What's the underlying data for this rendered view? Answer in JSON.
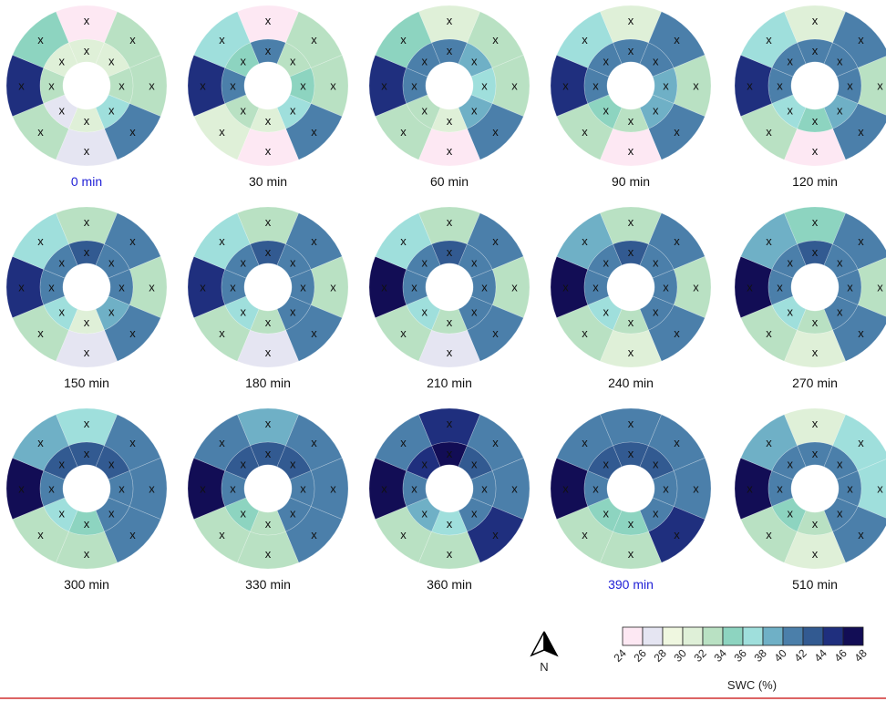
{
  "chart_data": {
    "type": "heatmap",
    "description_unit": "SWC (%)",
    "rings": [
      "outer",
      "middle"
    ],
    "sectors": 8,
    "sector_order": "clockwise from north: N, NE, E, SE, S, SW, W, NW",
    "marker": "x",
    "panels": [
      {
        "label": "0 min",
        "highlight": true,
        "outer": [
          24,
          32,
          32,
          41,
          27,
          32,
          45,
          35
        ],
        "middle": [
          30,
          30,
          33,
          36,
          30,
          27,
          32,
          31
        ]
      },
      {
        "label": "30 min",
        "highlight": false,
        "outer": [
          24,
          32,
          32,
          41,
          24,
          31,
          45,
          36
        ],
        "middle": [
          41,
          33,
          34,
          37,
          30,
          32,
          40,
          35
        ]
      },
      {
        "label": "60 min",
        "highlight": false,
        "outer": [
          30,
          32,
          32,
          41,
          24,
          32,
          45,
          35
        ],
        "middle": [
          41,
          38,
          37,
          39,
          30,
          33,
          40,
          41
        ]
      },
      {
        "label": "90 min",
        "highlight": false,
        "outer": [
          30,
          40,
          32,
          41,
          24,
          32,
          45,
          36
        ],
        "middle": [
          41,
          40,
          39,
          38,
          33,
          35,
          40,
          41
        ]
      },
      {
        "label": "120 min",
        "highlight": false,
        "outer": [
          30,
          40,
          32,
          41,
          24,
          32,
          45,
          36
        ],
        "middle": [
          41,
          40,
          40,
          38,
          35,
          36,
          41,
          41
        ]
      },
      {
        "label": "150 min",
        "highlight": false,
        "outer": [
          32,
          40,
          32,
          41,
          27,
          32,
          45,
          36
        ],
        "middle": [
          42,
          41,
          40,
          38,
          31,
          36,
          40,
          41
        ]
      },
      {
        "label": "180 min",
        "highlight": false,
        "outer": [
          32,
          40,
          32,
          41,
          27,
          32,
          45,
          36
        ],
        "middle": [
          42,
          41,
          40,
          40,
          33,
          36,
          40,
          41
        ]
      },
      {
        "label": "210 min",
        "highlight": false,
        "outer": [
          32,
          40,
          32,
          41,
          27,
          32,
          48,
          36
        ],
        "middle": [
          42,
          41,
          40,
          40,
          33,
          37,
          40,
          41
        ]
      },
      {
        "label": "240 min",
        "highlight": false,
        "outer": [
          32,
          41,
          32,
          41,
          30,
          32,
          48,
          38
        ],
        "middle": [
          42,
          41,
          40,
          40,
          33,
          37,
          40,
          41
        ]
      },
      {
        "label": "270 min",
        "highlight": false,
        "outer": [
          34,
          40,
          32,
          41,
          30,
          32,
          48,
          38
        ],
        "middle": [
          42,
          41,
          40,
          40,
          33,
          37,
          40,
          41
        ]
      },
      {
        "label": "300 min",
        "highlight": false,
        "outer": [
          36,
          40,
          40,
          41,
          32,
          32,
          48,
          38
        ],
        "middle": [
          42,
          43,
          40,
          40,
          34,
          37,
          40,
          42
        ]
      },
      {
        "label": "330 min",
        "highlight": false,
        "outer": [
          38,
          41,
          40,
          41,
          32,
          32,
          48,
          40
        ],
        "middle": [
          42,
          42,
          40,
          41,
          33,
          34,
          40,
          43
        ]
      },
      {
        "label": "360 min",
        "highlight": false,
        "outer": [
          44,
          41,
          41,
          44,
          32,
          32,
          48,
          41
        ],
        "middle": [
          46,
          42,
          41,
          40,
          36,
          38,
          41,
          44
        ]
      },
      {
        "label": "390 min",
        "highlight": true,
        "outer": [
          40,
          41,
          40,
          44,
          32,
          32,
          48,
          41
        ],
        "middle": [
          42,
          42,
          40,
          41,
          34,
          35,
          40,
          43
        ]
      },
      {
        "label": "510 min",
        "highlight": false,
        "outer": [
          30,
          36,
          36,
          41,
          30,
          32,
          48,
          38
        ],
        "middle": [
          40,
          40,
          40,
          40,
          33,
          35,
          40,
          40
        ]
      }
    ],
    "colorbar": {
      "title": "SWC (%)",
      "ticks": [
        24,
        26,
        28,
        30,
        32,
        34,
        36,
        38,
        40,
        42,
        44,
        46,
        48
      ],
      "colors": [
        "#fde8f3",
        "#e5e5f2",
        "#eff7e0",
        "#dff0d8",
        "#b9e1c3",
        "#8dd4c0",
        "#9fdfdc",
        "#6fb0c6",
        "#4b7faa",
        "#325a91",
        "#1f2f7e",
        "#120d55"
      ]
    },
    "north_arrow": {
      "label": "N"
    }
  }
}
